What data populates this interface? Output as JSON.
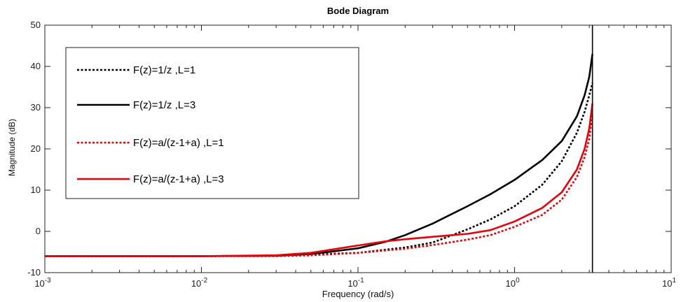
{
  "chart_data": {
    "type": "line",
    "title": "Bode Diagram",
    "xlabel": "Frequency  (rad/s)",
    "ylabel": "Magnitude (dB)",
    "x_scale": "log",
    "xlim": [
      0.001,
      10
    ],
    "ylim": [
      -10,
      50
    ],
    "x_ticks": [
      {
        "value": 0.001,
        "base": "10",
        "exp": "-3"
      },
      {
        "value": 0.01,
        "base": "10",
        "exp": "-2"
      },
      {
        "value": 0.1,
        "base": "10",
        "exp": "-1"
      },
      {
        "value": 1,
        "base": "10",
        "exp": "0"
      },
      {
        "value": 10,
        "base": "10",
        "exp": "1"
      }
    ],
    "y_ticks": [
      -10,
      0,
      10,
      20,
      30,
      40,
      50
    ],
    "grid": false,
    "legend_position": "top-left",
    "vertical_marker_x": 3.1416,
    "series": [
      {
        "name": "F(z)=1/z ,L=1",
        "color": "#000000",
        "style": "dotted",
        "x": [
          0.001,
          0.01,
          0.03,
          0.05,
          0.1,
          0.2,
          0.3,
          0.5,
          0.7,
          1.0,
          1.5,
          2.0,
          2.5,
          2.8,
          3.0,
          3.14
        ],
        "y": [
          -6,
          -6,
          -5.9,
          -5.6,
          -5.2,
          -3.9,
          -2.7,
          0.5,
          2.9,
          6.1,
          11.3,
          17.0,
          23.9,
          29.0,
          33.0,
          36.0
        ]
      },
      {
        "name": "F(z)=1/z ,L=3",
        "color": "#000000",
        "style": "solid",
        "x": [
          0.001,
          0.01,
          0.03,
          0.05,
          0.1,
          0.15,
          0.2,
          0.3,
          0.5,
          0.7,
          1.0,
          1.5,
          2.0,
          2.5,
          2.8,
          3.0,
          3.14
        ],
        "y": [
          -6,
          -6,
          -5.9,
          -5.5,
          -4.1,
          -2.5,
          -0.9,
          1.9,
          6.1,
          9.0,
          12.5,
          17.3,
          21.9,
          27.9,
          33.0,
          37.5,
          43.0
        ]
      },
      {
        "name": "F(z)=a/(z-1+a) ,L=1",
        "color": "#e8000b",
        "style": "dotted",
        "x": [
          0.001,
          0.01,
          0.03,
          0.05,
          0.1,
          0.2,
          0.3,
          0.5,
          0.7,
          1.0,
          1.5,
          2.0,
          2.5,
          2.8,
          3.0,
          3.14
        ],
        "y": [
          -6,
          -6,
          -6,
          -5.8,
          -5.2,
          -4.2,
          -3.3,
          -2.0,
          -0.9,
          1.1,
          4.0,
          7.7,
          13.2,
          18.0,
          22.5,
          28.5
        ]
      },
      {
        "name": "F(z)=a/(z-1+a) ,L=3",
        "color": "#e8000b",
        "style": "solid",
        "x": [
          0.001,
          0.01,
          0.03,
          0.05,
          0.1,
          0.15,
          0.2,
          0.3,
          0.5,
          0.7,
          1.0,
          1.5,
          2.0,
          2.5,
          2.8,
          3.0,
          3.14
        ],
        "y": [
          -6,
          -6,
          -5.8,
          -5.2,
          -3.4,
          -2.4,
          -1.9,
          -1.3,
          -0.6,
          0.3,
          2.4,
          5.7,
          9.5,
          15.0,
          20.0,
          25.0,
          31.0
        ]
      }
    ]
  }
}
